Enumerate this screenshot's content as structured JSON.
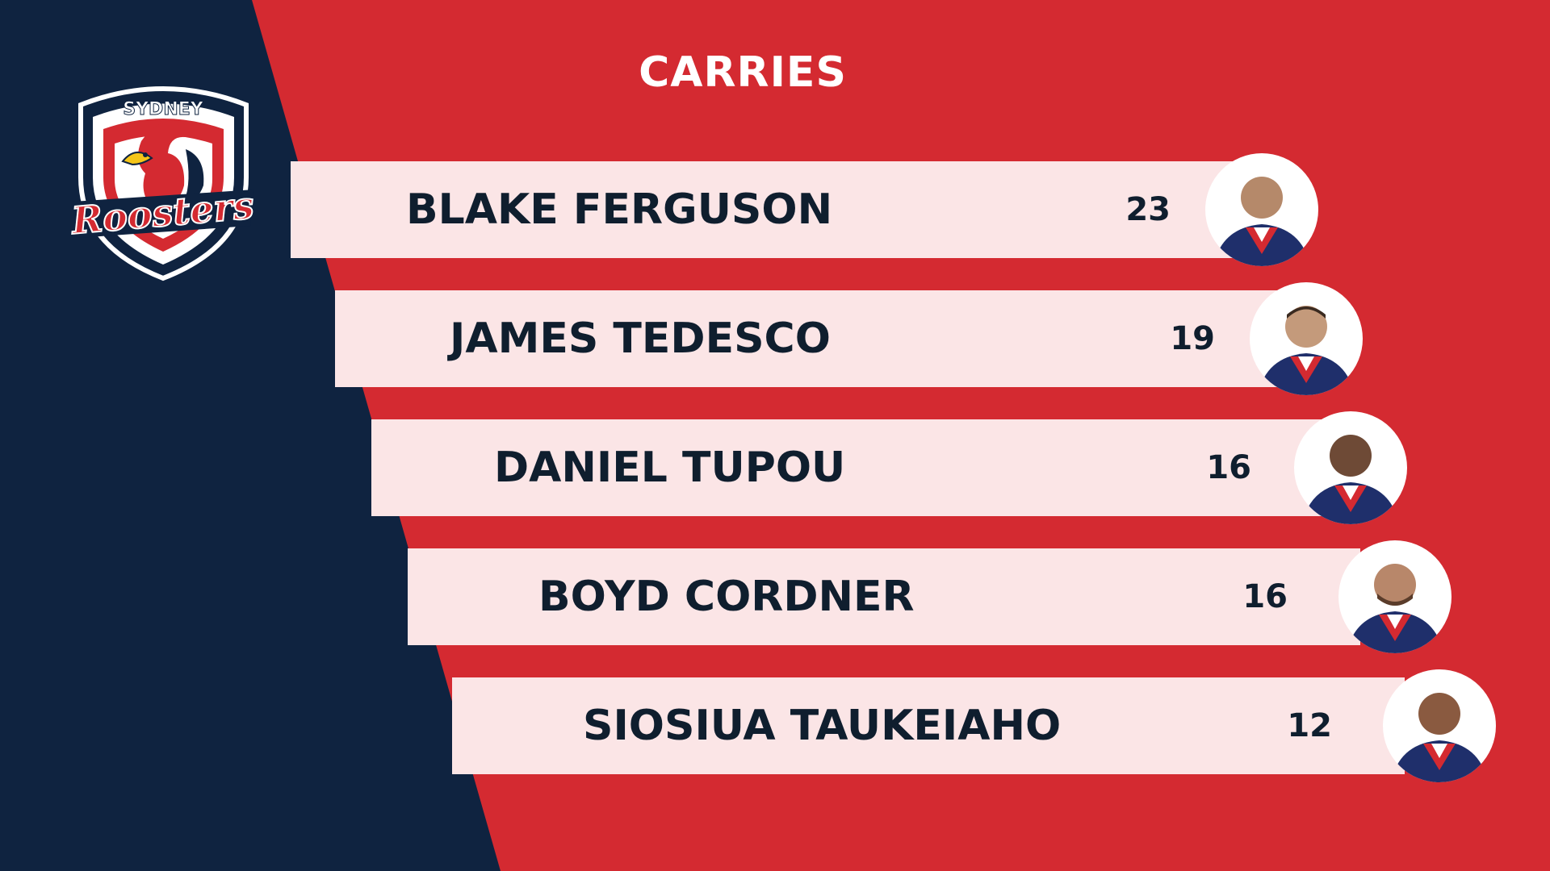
{
  "title": "CARRIES",
  "logo": {
    "top_text": "SYDNEY",
    "script_text": "Roosters"
  },
  "colors": {
    "red": "#d42a31",
    "navy": "#0f2340",
    "bar": "#fbe5e6",
    "text": "#0f1e2e"
  },
  "players": [
    {
      "name": "BLAKE FERGUSON",
      "value": "23"
    },
    {
      "name": "JAMES TEDESCO",
      "value": "19"
    },
    {
      "name": "DANIEL TUPOU",
      "value": "16"
    },
    {
      "name": "BOYD CORDNER",
      "value": "16"
    },
    {
      "name": "SIOSIUA TAUKEIAHO",
      "value": "12"
    }
  ]
}
